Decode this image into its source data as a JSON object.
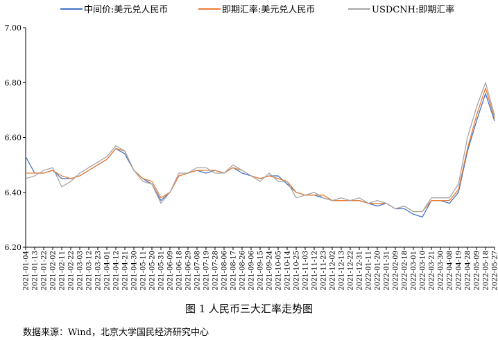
{
  "chart_data": {
    "type": "line",
    "title": "",
    "xlabel": "",
    "ylabel": "",
    "ylim": [
      6.2,
      7.0
    ],
    "yticks": [
      "6.20",
      "6.40",
      "6.60",
      "6.80",
      "7.00"
    ],
    "grid": false,
    "legend_position": "top",
    "x_ticks": [
      "2021-01-04",
      "2021-01-13",
      "2021-01-22",
      "2021-02-02",
      "2021-02-11",
      "2021-02-22",
      "2021-03-03",
      "2021-03-12",
      "2021-03-23",
      "2021-04-01",
      "2021-04-12",
      "2021-04-21",
      "2021-04-30",
      "2021-05-11",
      "2021-05-20",
      "2021-05-31",
      "2021-06-09",
      "2021-06-18",
      "2021-06-29",
      "2021-07-08",
      "2021-07-19",
      "2021-07-28",
      "2021-08-06",
      "2021-08-17",
      "2021-08-26",
      "2021-09-06",
      "2021-09-15",
      "2021-09-24",
      "2021-10-05",
      "2021-10-14",
      "2021-10-25",
      "2021-11-03",
      "2021-11-12",
      "2021-11-23",
      "2021-12-02",
      "2021-12-13",
      "2021-12-22",
      "2021-12-31",
      "2022-01-11",
      "2022-01-20",
      "2022-01-31",
      "2022-02-09",
      "2022-02-18",
      "2022-03-01",
      "2022-03-10",
      "2022-03-21",
      "2022-03-30",
      "2022-04-08",
      "2022-04-19",
      "2022-04-28",
      "2022-05-09",
      "2022-05-18",
      "2022-05-27"
    ],
    "series": [
      {
        "name": "中间价:美元兑人民币",
        "color": "#4472c4",
        "values": [
          6.53,
          6.47,
          6.47,
          6.48,
          6.45,
          6.45,
          6.46,
          6.48,
          6.5,
          6.52,
          6.56,
          6.54,
          6.48,
          6.45,
          6.43,
          6.37,
          6.4,
          6.46,
          6.47,
          6.48,
          6.47,
          6.48,
          6.47,
          6.49,
          6.47,
          6.46,
          6.45,
          6.46,
          6.46,
          6.43,
          6.4,
          6.39,
          6.39,
          6.38,
          6.37,
          6.37,
          6.37,
          6.37,
          6.36,
          6.35,
          6.36,
          6.34,
          6.34,
          6.32,
          6.31,
          6.37,
          6.37,
          6.36,
          6.4,
          6.55,
          6.66,
          6.76,
          6.66
        ]
      },
      {
        "name": "即期汇率:美元兑人民币",
        "color": "#ed7d31",
        "values": [
          6.47,
          6.47,
          6.47,
          6.48,
          6.46,
          6.45,
          6.46,
          6.48,
          6.5,
          6.52,
          6.56,
          6.55,
          6.48,
          6.45,
          6.44,
          6.38,
          6.4,
          6.46,
          6.47,
          6.48,
          6.48,
          6.48,
          6.47,
          6.49,
          6.48,
          6.46,
          6.45,
          6.46,
          6.45,
          6.44,
          6.4,
          6.39,
          6.39,
          6.39,
          6.37,
          6.37,
          6.37,
          6.37,
          6.36,
          6.36,
          6.36,
          6.34,
          6.35,
          6.33,
          6.33,
          6.37,
          6.37,
          6.37,
          6.41,
          6.56,
          6.68,
          6.78,
          6.67
        ]
      },
      {
        "name": "USDCNH:即期汇率",
        "color": "#a5a5a5",
        "values": [
          6.45,
          6.46,
          6.48,
          6.49,
          6.42,
          6.44,
          6.47,
          6.49,
          6.51,
          6.53,
          6.57,
          6.55,
          6.48,
          6.44,
          6.43,
          6.36,
          6.4,
          6.47,
          6.47,
          6.49,
          6.49,
          6.47,
          6.47,
          6.5,
          6.48,
          6.46,
          6.44,
          6.47,
          6.44,
          6.44,
          6.38,
          6.39,
          6.4,
          6.38,
          6.37,
          6.38,
          6.37,
          6.38,
          6.36,
          6.37,
          6.36,
          6.34,
          6.35,
          6.33,
          6.33,
          6.38,
          6.38,
          6.38,
          6.43,
          6.6,
          6.71,
          6.8,
          6.68
        ]
      }
    ]
  },
  "caption": "图 1  人民币三大汇率走势图",
  "source": "数据来源：Wind，北京大学国民经济研究中心"
}
